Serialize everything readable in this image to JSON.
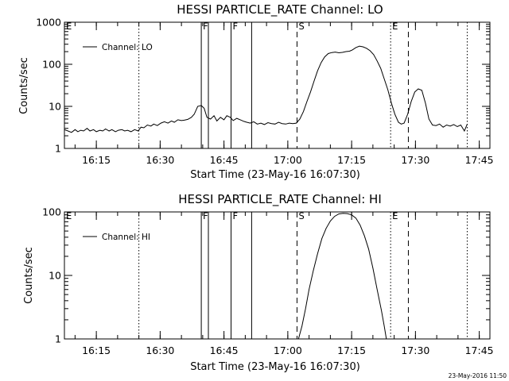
{
  "chart_data": [
    {
      "type": "line",
      "title": "HESSI PARTICLE_RATE Channel: LO",
      "xlabel": "Start Time (23-May-16 16:07:30)",
      "ylabel": "Counts/sec",
      "yscale": "log",
      "xlim": [
        "16:07:30",
        "17:47:30"
      ],
      "ylim": [
        1,
        1000
      ],
      "xticks": [
        "16:15",
        "16:30",
        "16:45",
        "17:00",
        "17:15",
        "17:30",
        "17:45"
      ],
      "yticks": [
        "1",
        "10",
        "100",
        "1000"
      ],
      "legend": {
        "position": "top-left",
        "entries": [
          "Channel: LO"
        ]
      },
      "grid": false,
      "markers": [
        {
          "time": "16:07:30",
          "label": "E",
          "style": "none"
        },
        {
          "time": "16:25:00",
          "label": "",
          "style": "dotted"
        },
        {
          "time": "16:39:40",
          "label": "F",
          "style": "solid"
        },
        {
          "time": "16:41:20",
          "label": "",
          "style": "solid"
        },
        {
          "time": "16:46:40",
          "label": "F",
          "style": "solid"
        },
        {
          "time": "16:51:30",
          "label": "",
          "style": "solid"
        },
        {
          "time": "17:02:10",
          "label": "S",
          "style": "dashed"
        },
        {
          "time": "17:24:10",
          "label": "E",
          "style": "dotted"
        },
        {
          "time": "17:28:20",
          "label": "",
          "style": "dashed"
        },
        {
          "time": "17:42:10",
          "label": "",
          "style": "dotted"
        }
      ],
      "series": [
        {
          "name": "Channel: LO",
          "x": [
            "16:07:30",
            "16:08:20",
            "16:09:10",
            "16:10:00",
            "16:10:40",
            "16:11:20",
            "16:12:00",
            "16:12:50",
            "16:13:30",
            "16:14:20",
            "16:15:00",
            "16:15:50",
            "16:16:30",
            "16:17:10",
            "16:18:00",
            "16:18:40",
            "16:19:30",
            "16:20:10",
            "16:21:00",
            "16:21:40",
            "16:22:20",
            "16:23:10",
            "16:24:00",
            "16:24:50",
            "16:25:30",
            "16:26:10",
            "16:27:00",
            "16:27:50",
            "16:28:30",
            "16:29:20",
            "16:30:10",
            "16:31:00",
            "16:31:50",
            "16:32:40",
            "16:33:20",
            "16:34:10",
            "16:35:00",
            "16:35:40",
            "16:36:30",
            "16:37:20",
            "16:38:00",
            "16:38:50",
            "16:39:40",
            "16:40:20",
            "16:41:00",
            "16:41:50",
            "16:42:40",
            "16:43:20",
            "16:44:10",
            "16:45:00",
            "16:45:40",
            "16:46:30",
            "16:47:10",
            "16:48:00",
            "16:48:50",
            "16:49:40",
            "16:50:20",
            "16:51:10",
            "16:52:00",
            "16:52:50",
            "16:53:40",
            "16:54:30",
            "16:55:20",
            "16:56:10",
            "16:57:00",
            "16:57:50",
            "16:58:40",
            "16:59:30",
            "17:00:20",
            "17:01:10",
            "17:02:00",
            "17:02:50",
            "17:03:40",
            "17:04:30",
            "17:05:20",
            "17:06:10",
            "17:07:00",
            "17:07:50",
            "17:08:40",
            "17:09:30",
            "17:10:20",
            "17:11:10",
            "17:12:00",
            "17:12:50",
            "17:13:40",
            "17:14:30",
            "17:15:10",
            "17:16:00",
            "17:16:50",
            "17:17:40",
            "17:18:30",
            "17:19:20",
            "17:20:10",
            "17:21:00",
            "17:21:50",
            "17:22:40",
            "17:23:30",
            "17:24:20",
            "17:25:10",
            "17:26:00",
            "17:26:40",
            "17:27:20",
            "17:28:10",
            "17:29:00",
            "17:29:50",
            "17:30:40",
            "17:31:30",
            "17:32:20",
            "17:33:10",
            "17:34:00",
            "17:34:50",
            "17:35:40",
            "17:36:30",
            "17:37:20",
            "17:38:10",
            "17:39:00",
            "17:39:50",
            "17:40:40",
            "17:41:30",
            "17:42:10"
          ],
          "y": [
            2.8,
            2.6,
            2.4,
            2.8,
            2.5,
            2.7,
            2.6,
            3.0,
            2.6,
            2.8,
            2.5,
            2.7,
            2.6,
            2.9,
            2.6,
            2.8,
            2.5,
            2.7,
            2.8,
            2.6,
            2.7,
            2.5,
            2.8,
            2.6,
            3.2,
            3.1,
            3.6,
            3.4,
            3.8,
            3.5,
            4.0,
            4.3,
            4.0,
            4.5,
            4.2,
            4.8,
            4.6,
            4.7,
            4.9,
            5.5,
            6.5,
            10.0,
            10.5,
            9.0,
            5.5,
            5.0,
            6.0,
            4.5,
            5.5,
            4.8,
            6.0,
            5.5,
            4.6,
            5.2,
            4.8,
            4.4,
            4.2,
            4.0,
            4.3,
            3.8,
            4.0,
            3.7,
            4.1,
            3.9,
            3.8,
            4.2,
            3.9,
            3.8,
            4.0,
            3.9,
            4.0,
            5.0,
            7.5,
            13.0,
            22.0,
            40.0,
            70.0,
            110.0,
            150.0,
            180.0,
            190.0,
            195.0,
            188.0,
            192.0,
            200.0,
            205.0,
            220.0,
            250.0,
            270.0,
            260.0,
            240.0,
            210.0,
            170.0,
            120.0,
            80.0,
            45.0,
            25.0,
            12.0,
            6.5,
            4.2,
            3.8,
            4.0,
            6.5,
            13.0,
            22.0,
            26.0,
            24.0,
            12.0,
            5.0,
            3.6,
            3.5,
            3.8,
            3.2,
            3.6,
            3.4,
            3.7,
            3.3,
            3.6,
            2.6,
            3.8
          ]
        }
      ]
    },
    {
      "type": "line",
      "title": "HESSI PARTICLE_RATE Channel: HI",
      "xlabel": "Start Time (23-May-16 16:07:30)",
      "ylabel": "Counts/sec",
      "yscale": "log",
      "xlim": [
        "16:07:30",
        "17:47:30"
      ],
      "ylim": [
        1,
        100
      ],
      "xticks": [
        "16:15",
        "16:30",
        "16:45",
        "17:00",
        "17:15",
        "17:30",
        "17:45"
      ],
      "yticks": [
        "1",
        "10",
        "100"
      ],
      "legend": {
        "position": "top-left",
        "entries": [
          "Channel: HI"
        ]
      },
      "grid": false,
      "markers": [
        {
          "time": "16:07:30",
          "label": "E",
          "style": "none"
        },
        {
          "time": "16:25:00",
          "label": "",
          "style": "dotted"
        },
        {
          "time": "16:39:40",
          "label": "F",
          "style": "solid"
        },
        {
          "time": "16:41:20",
          "label": "",
          "style": "solid"
        },
        {
          "time": "16:46:40",
          "label": "F",
          "style": "solid"
        },
        {
          "time": "16:51:30",
          "label": "",
          "style": "solid"
        },
        {
          "time": "17:02:10",
          "label": "S",
          "style": "dashed"
        },
        {
          "time": "17:24:10",
          "label": "E",
          "style": "dotted"
        },
        {
          "time": "17:28:20",
          "label": "",
          "style": "dashed"
        },
        {
          "time": "17:42:10",
          "label": "",
          "style": "dotted"
        }
      ],
      "series": [
        {
          "name": "Channel: HI",
          "x": [
            "17:02:30",
            "17:03:20",
            "17:04:10",
            "17:05:00",
            "17:06:00",
            "17:07:00",
            "17:08:00",
            "17:09:00",
            "17:10:00",
            "17:11:00",
            "17:12:00",
            "17:13:00",
            "17:14:00",
            "17:15:00",
            "17:16:00",
            "17:17:00",
            "17:18:00",
            "17:19:00",
            "17:20:00",
            "17:21:00",
            "17:22:00",
            "17:22:40",
            "17:23:10"
          ],
          "y": [
            1.0,
            1.6,
            3.0,
            6.0,
            12.0,
            22.0,
            38.0,
            55.0,
            72.0,
            85.0,
            93.0,
            95.0,
            94.0,
            90.0,
            80.0,
            62.0,
            42.0,
            26.0,
            13.0,
            6.0,
            2.8,
            1.6,
            1.0
          ]
        }
      ]
    }
  ],
  "timestamp": "23-May-2016 11:50"
}
